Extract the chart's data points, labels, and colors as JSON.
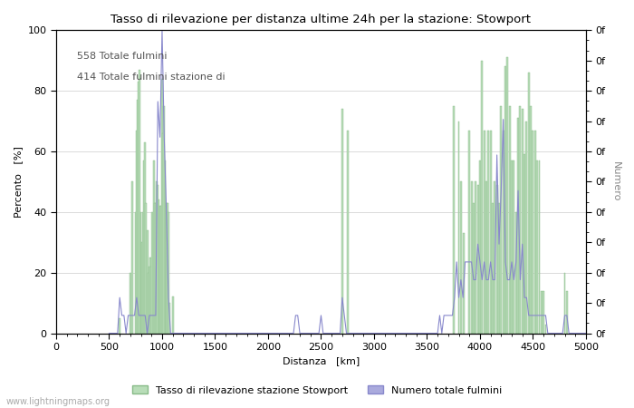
{
  "title": "Tasso di rilevazione per distanza ultime 24h per la stazione: Stowport",
  "xlabel": "Distanza   [km]",
  "ylabel_left": "Percento   [%]",
  "ylabel_right": "Numero",
  "annotation_line1": "558 Totale fulmini",
  "annotation_line2": "414 Totale fulmini stazione di",
  "legend_green": "Tasso di rilevazione stazione Stowport",
  "legend_blue": "Numero totale fulmini",
  "watermark": "www.lightningmaps.org",
  "xlim": [
    0,
    5000
  ],
  "ylim_left": [
    0,
    100
  ],
  "color_green": "#b8ddb8",
  "color_green_edge": "#88bb88",
  "color_blue_line": "#8888cc",
  "color_blue_fill": "#aaaadd",
  "background_color": "#ffffff",
  "grid_color": "#cccccc",
  "green_spikes": [
    [
      600,
      5
    ],
    [
      700,
      20
    ],
    [
      720,
      50
    ],
    [
      750,
      40
    ],
    [
      760,
      67
    ],
    [
      770,
      77
    ],
    [
      780,
      83
    ],
    [
      790,
      87
    ],
    [
      800,
      40
    ],
    [
      810,
      30
    ],
    [
      820,
      40
    ],
    [
      830,
      57
    ],
    [
      840,
      63
    ],
    [
      850,
      43
    ],
    [
      860,
      34
    ],
    [
      870,
      20
    ],
    [
      880,
      22
    ],
    [
      890,
      25
    ],
    [
      900,
      22
    ],
    [
      910,
      40
    ],
    [
      920,
      57
    ],
    [
      930,
      43
    ],
    [
      940,
      43
    ],
    [
      950,
      50
    ],
    [
      960,
      49
    ],
    [
      970,
      44
    ],
    [
      980,
      42
    ],
    [
      990,
      42
    ],
    [
      1000,
      84
    ],
    [
      1010,
      66
    ],
    [
      1020,
      75
    ],
    [
      1030,
      57
    ],
    [
      1040,
      43
    ],
    [
      1050,
      43
    ],
    [
      1060,
      40
    ],
    [
      1070,
      10
    ],
    [
      1100,
      12
    ],
    [
      2700,
      74
    ],
    [
      2750,
      67
    ],
    [
      3750,
      75
    ],
    [
      3800,
      70
    ],
    [
      3820,
      50
    ],
    [
      3850,
      33
    ],
    [
      3900,
      67
    ],
    [
      3920,
      50
    ],
    [
      3940,
      43
    ],
    [
      3960,
      50
    ],
    [
      3980,
      49
    ],
    [
      4000,
      57
    ],
    [
      4020,
      90
    ],
    [
      4040,
      67
    ],
    [
      4060,
      50
    ],
    [
      4080,
      67
    ],
    [
      4100,
      67
    ],
    [
      4120,
      43
    ],
    [
      4140,
      50
    ],
    [
      4160,
      49
    ],
    [
      4180,
      43
    ],
    [
      4200,
      75
    ],
    [
      4220,
      67
    ],
    [
      4240,
      88
    ],
    [
      4260,
      91
    ],
    [
      4280,
      75
    ],
    [
      4300,
      57
    ],
    [
      4320,
      57
    ],
    [
      4340,
      40
    ],
    [
      4360,
      71
    ],
    [
      4380,
      75
    ],
    [
      4400,
      74
    ],
    [
      4420,
      59
    ],
    [
      4440,
      70
    ],
    [
      4460,
      86
    ],
    [
      4480,
      75
    ],
    [
      4500,
      67
    ],
    [
      4520,
      67
    ],
    [
      4540,
      57
    ],
    [
      4560,
      57
    ],
    [
      4580,
      14
    ],
    [
      4600,
      14
    ],
    [
      4620,
      3
    ],
    [
      4800,
      20
    ],
    [
      4820,
      14
    ]
  ],
  "blue_x": [
    500,
    520,
    540,
    560,
    580,
    600,
    620,
    640,
    660,
    680,
    700,
    720,
    740,
    760,
    780,
    800,
    820,
    840,
    860,
    880,
    900,
    920,
    940,
    960,
    980,
    1000,
    1020,
    1040,
    1060,
    1080,
    1100,
    1120,
    1140,
    1160,
    1180,
    1200,
    1220,
    1240,
    1260,
    1280,
    1300,
    1320,
    1340,
    1360,
    1380,
    1400,
    1420,
    1440,
    1460,
    1480,
    1500,
    1520,
    1540,
    1560,
    1580,
    1600,
    1620,
    1640,
    1660,
    1680,
    1700,
    1720,
    1740,
    1760,
    1780,
    1800,
    1820,
    1840,
    1860,
    1880,
    1900,
    1920,
    1940,
    1960,
    1980,
    2000,
    2020,
    2040,
    2060,
    2080,
    2100,
    2120,
    2140,
    2160,
    2180,
    2200,
    2220,
    2240,
    2260,
    2280,
    2300,
    2320,
    2340,
    2360,
    2380,
    2400,
    2420,
    2440,
    2460,
    2480,
    2500,
    2520,
    2540,
    2560,
    2580,
    2600,
    2620,
    2640,
    2660,
    2680,
    2700,
    2720,
    2740,
    2760,
    2780,
    2800,
    2820,
    2840,
    2860,
    2880,
    2900,
    2920,
    2940,
    2960,
    2980,
    3000,
    3020,
    3040,
    3060,
    3080,
    3100,
    3120,
    3140,
    3160,
    3180,
    3200,
    3220,
    3240,
    3260,
    3280,
    3300,
    3320,
    3340,
    3360,
    3380,
    3400,
    3420,
    3440,
    3460,
    3480,
    3500,
    3520,
    3540,
    3560,
    3580,
    3600,
    3620,
    3640,
    3660,
    3680,
    3700,
    3720,
    3740,
    3760,
    3780,
    3800,
    3820,
    3840,
    3860,
    3880,
    3900,
    3920,
    3940,
    3960,
    3980,
    4000,
    4020,
    4040,
    4060,
    4080,
    4100,
    4120,
    4140,
    4160,
    4180,
    4200,
    4220,
    4240,
    4260,
    4280,
    4300,
    4320,
    4340,
    4360,
    4380,
    4400,
    4420,
    4440,
    4460,
    4480,
    4500,
    4520,
    4540,
    4560,
    4580,
    4600,
    4620,
    4640,
    4660,
    4680,
    4700,
    4720,
    4740,
    4760,
    4780,
    4800,
    4820,
    4840,
    4860,
    4880,
    4900,
    4920,
    4940,
    4960,
    4980,
    5000
  ],
  "blue_y": [
    0,
    0,
    0,
    0,
    0,
    2,
    1,
    1,
    0,
    1,
    1,
    1,
    1,
    2,
    1,
    1,
    1,
    1,
    0,
    1,
    1,
    1,
    1,
    13,
    11,
    17,
    11,
    7,
    2,
    0,
    0,
    0,
    0,
    0,
    0,
    0,
    0,
    0,
    0,
    0,
    0,
    0,
    0,
    0,
    0,
    0,
    0,
    0,
    0,
    0,
    0,
    0,
    0,
    0,
    0,
    0,
    0,
    0,
    0,
    0,
    0,
    0,
    0,
    0,
    0,
    0,
    0,
    0,
    0,
    0,
    0,
    0,
    0,
    0,
    0,
    0,
    0,
    0,
    0,
    0,
    0,
    0,
    0,
    0,
    0,
    0,
    0,
    0,
    1,
    1,
    0,
    0,
    0,
    0,
    0,
    0,
    0,
    0,
    0,
    0,
    1,
    0,
    0,
    0,
    0,
    0,
    0,
    0,
    0,
    0,
    2,
    1,
    0,
    0,
    0,
    0,
    0,
    0,
    0,
    0,
    0,
    0,
    0,
    0,
    0,
    0,
    0,
    0,
    0,
    0,
    0,
    0,
    0,
    0,
    0,
    0,
    0,
    0,
    0,
    0,
    0,
    0,
    0,
    0,
    0,
    0,
    0,
    0,
    0,
    0,
    0,
    0,
    0,
    0,
    0,
    0,
    1,
    0,
    1,
    1,
    1,
    1,
    1,
    2,
    4,
    2,
    3,
    2,
    4,
    4,
    4,
    4,
    3,
    3,
    5,
    4,
    3,
    4,
    3,
    3,
    4,
    3,
    3,
    10,
    5,
    8,
    12,
    4,
    3,
    3,
    4,
    3,
    4,
    8,
    3,
    5,
    2,
    2,
    1,
    1,
    1,
    1,
    1,
    1,
    1,
    1,
    1,
    0,
    0,
    0,
    0,
    0,
    0,
    0,
    0,
    1,
    1,
    0,
    0,
    0,
    0,
    0,
    0,
    0,
    0,
    0
  ],
  "blue_scale": 17,
  "xticks": [
    0,
    500,
    1000,
    1500,
    2000,
    2500,
    3000,
    3500,
    4000,
    4500,
    5000
  ],
  "yticks_left": [
    0,
    20,
    40,
    60,
    80,
    100
  ],
  "yticks_right_pos": [
    0,
    10,
    20,
    30,
    40,
    50,
    60,
    70,
    80,
    90,
    100
  ],
  "yticks_right_labels": [
    "0f",
    "0f",
    "0f",
    "0f",
    "0f",
    "0f",
    "0f",
    "0f",
    "0f",
    "0f",
    "0f"
  ]
}
